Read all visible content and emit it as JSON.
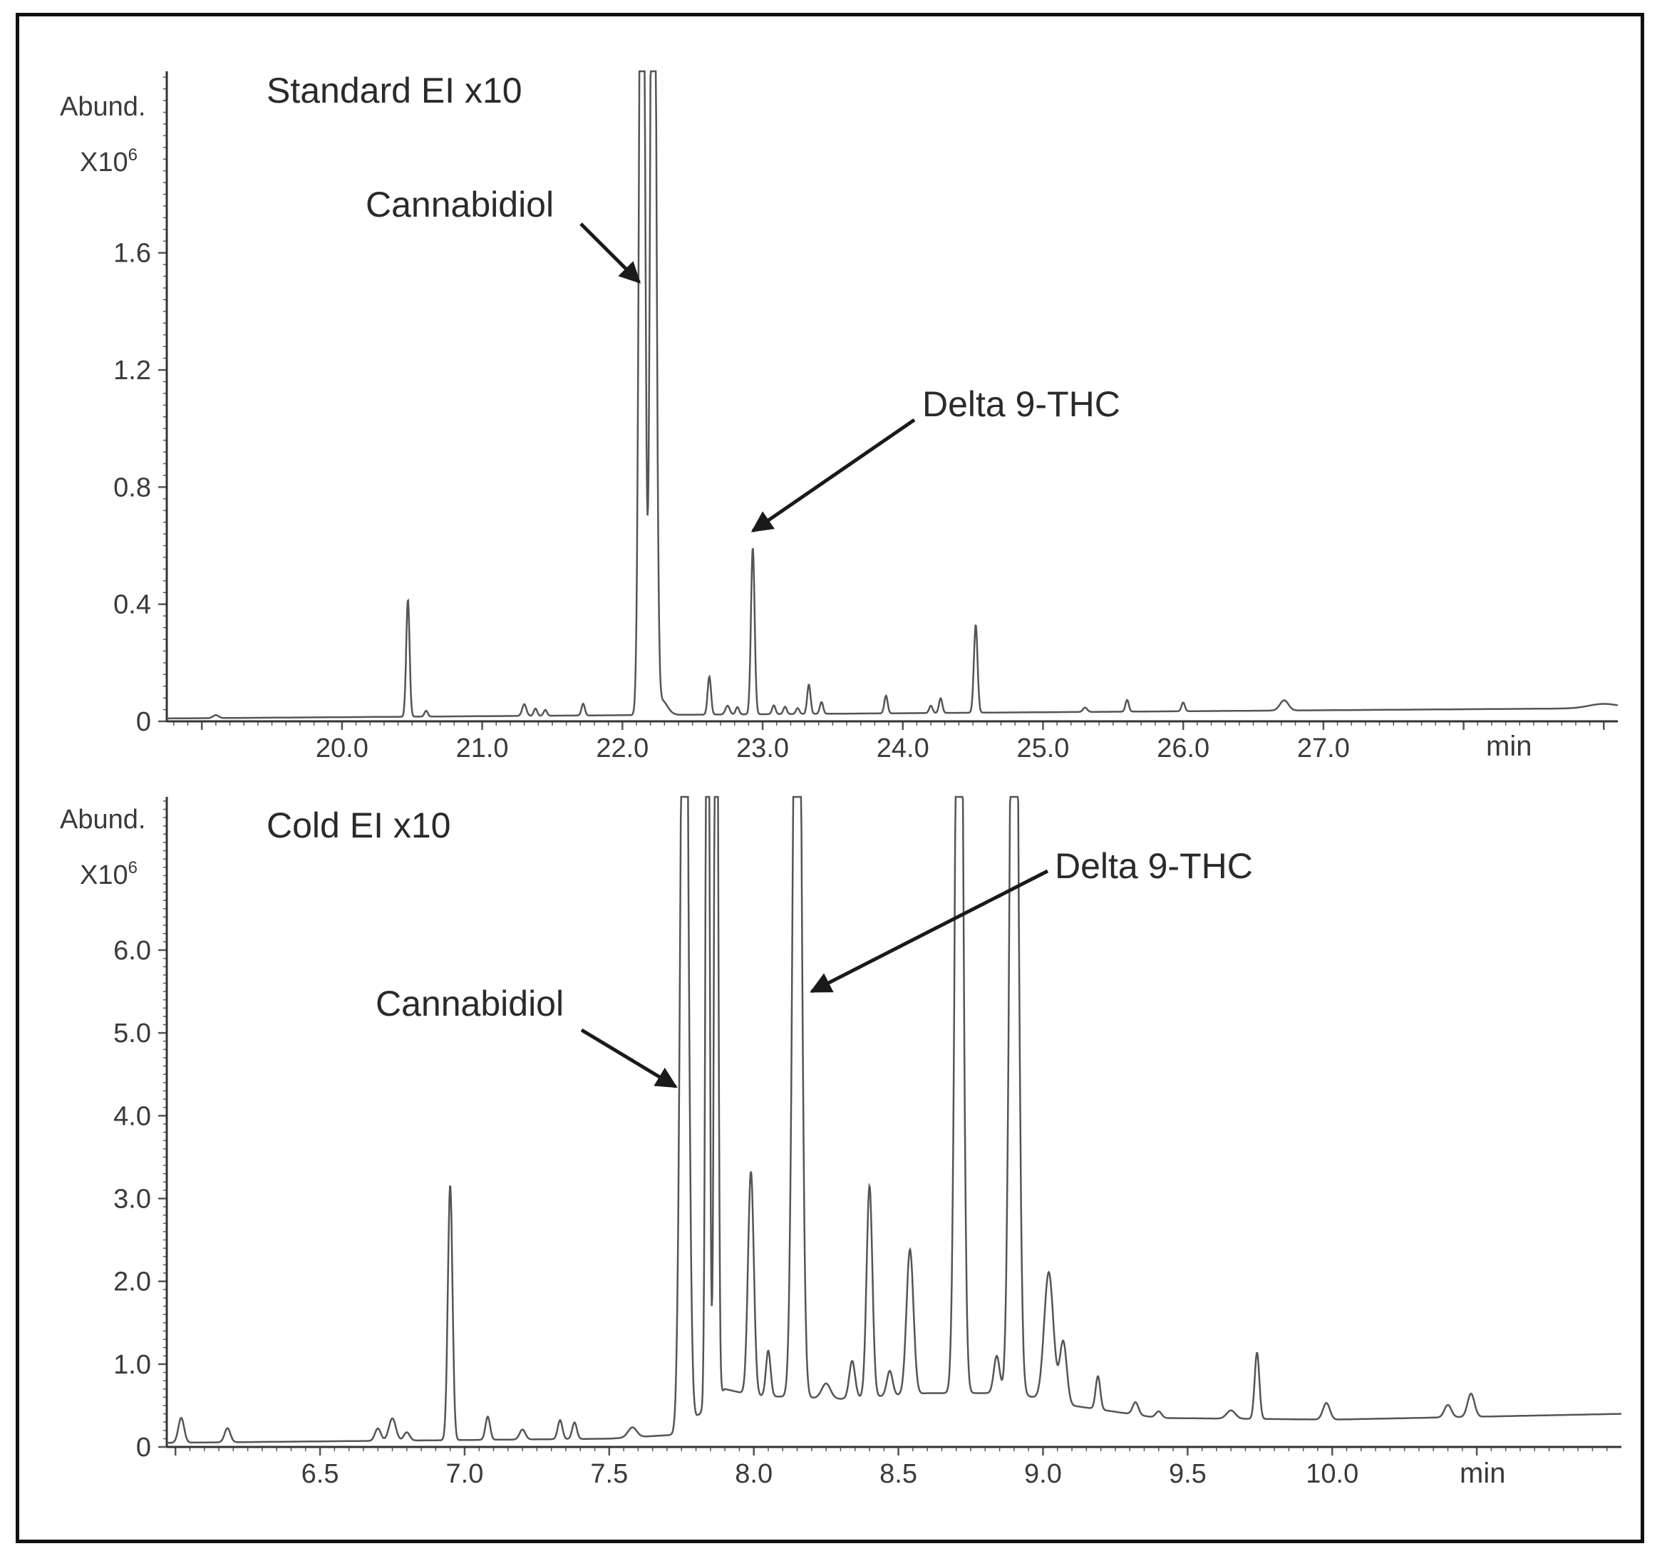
{
  "colors": {
    "trace": "#555555",
    "axis": "#333333",
    "text": "#3a3a3a",
    "arrow": "#1a1a1a",
    "frame": "#111111"
  },
  "chart_data": [
    {
      "type": "line",
      "title": "Standard EI x10",
      "y_unit_label": "Abund.",
      "y_scale_label": "X10",
      "y_scale_exponent": "6",
      "x_unit_label": "min",
      "xlim": [
        18.75,
        29.1
      ],
      "ylim": [
        0,
        2.22
      ],
      "x_ticks": [
        20.0,
        21.0,
        22.0,
        23.0,
        24.0,
        25.0,
        26.0,
        27.0
      ],
      "x_tick_labels": [
        "20.0",
        "21.0",
        "22.0",
        "23.0",
        "24.0",
        "25.0",
        "26.0",
        "27.0"
      ],
      "y_ticks": [
        0,
        0.4,
        0.8,
        1.2,
        1.6
      ],
      "y_tick_labels": [
        "0",
        "0.4",
        "0.8",
        "1.2",
        "1.6"
      ],
      "baseline": {
        "start": 0.01,
        "end": 0.045,
        "hump_x": 29.0,
        "hump_y": 0.015
      },
      "peaks": [
        {
          "x": 19.1,
          "y": 0.01,
          "w": 0.02
        },
        {
          "x": 20.47,
          "y": 0.4,
          "w": 0.012
        },
        {
          "x": 20.6,
          "y": 0.02,
          "w": 0.012
        },
        {
          "x": 21.3,
          "y": 0.04,
          "w": 0.015
        },
        {
          "x": 21.38,
          "y": 0.025,
          "w": 0.012
        },
        {
          "x": 21.45,
          "y": 0.02,
          "w": 0.012
        },
        {
          "x": 21.72,
          "y": 0.04,
          "w": 0.012
        },
        {
          "x": 22.14,
          "y": 4.0,
          "w": 0.018
        },
        {
          "x": 22.22,
          "y": 4.0,
          "w": 0.018
        },
        {
          "x": 22.28,
          "y": 0.05,
          "w": 0.04
        },
        {
          "x": 22.62,
          "y": 0.13,
          "w": 0.012
        },
        {
          "x": 22.75,
          "y": 0.03,
          "w": 0.015
        },
        {
          "x": 22.82,
          "y": 0.025,
          "w": 0.012
        },
        {
          "x": 22.93,
          "y": 0.57,
          "w": 0.013
        },
        {
          "x": 23.08,
          "y": 0.03,
          "w": 0.012
        },
        {
          "x": 23.16,
          "y": 0.025,
          "w": 0.012
        },
        {
          "x": 23.25,
          "y": 0.02,
          "w": 0.012
        },
        {
          "x": 23.33,
          "y": 0.1,
          "w": 0.012
        },
        {
          "x": 23.42,
          "y": 0.04,
          "w": 0.012
        },
        {
          "x": 23.88,
          "y": 0.06,
          "w": 0.012
        },
        {
          "x": 24.2,
          "y": 0.025,
          "w": 0.012
        },
        {
          "x": 24.27,
          "y": 0.05,
          "w": 0.012
        },
        {
          "x": 24.52,
          "y": 0.3,
          "w": 0.013
        },
        {
          "x": 25.3,
          "y": 0.015,
          "w": 0.015
        },
        {
          "x": 25.6,
          "y": 0.04,
          "w": 0.012
        },
        {
          "x": 26.0,
          "y": 0.03,
          "w": 0.012
        },
        {
          "x": 26.72,
          "y": 0.035,
          "w": 0.03
        }
      ],
      "annotations": [
        {
          "text": "Cannabidiol",
          "target_x": 22.12,
          "target_y": 1.5
        },
        {
          "text": "Delta 9-THC",
          "target_x": 22.93,
          "target_y": 0.65
        }
      ]
    },
    {
      "type": "line",
      "title": "Cold EI x10",
      "y_unit_label": "Abund.",
      "y_scale_label": "X10",
      "y_scale_exponent": "6",
      "x_unit_label": "min",
      "xlim": [
        5.97,
        11.0
      ],
      "ylim": [
        0,
        7.85
      ],
      "x_ticks": [
        6.5,
        7.0,
        7.5,
        8.0,
        8.5,
        9.0,
        9.5,
        10.0
      ],
      "x_tick_labels": [
        "6.5",
        "7.0",
        "7.5",
        "8.0",
        "8.5",
        "9.0",
        "9.5",
        "10.0"
      ],
      "y_ticks": [
        0,
        1.0,
        2.0,
        3.0,
        4.0,
        5.0,
        6.0
      ],
      "y_tick_labels": [
        "0",
        "1.0",
        "2.0",
        "3.0",
        "4.0",
        "5.0",
        "6.0"
      ],
      "baseline": [
        {
          "x": 5.97,
          "y": 0.05
        },
        {
          "x": 7.5,
          "y": 0.1
        },
        {
          "x": 7.74,
          "y": 0.15
        },
        {
          "x": 7.9,
          "y": 0.7
        },
        {
          "x": 8.0,
          "y": 0.62
        },
        {
          "x": 8.3,
          "y": 0.58
        },
        {
          "x": 8.6,
          "y": 0.65
        },
        {
          "x": 8.9,
          "y": 0.65
        },
        {
          "x": 9.1,
          "y": 0.5
        },
        {
          "x": 9.4,
          "y": 0.35
        },
        {
          "x": 10.0,
          "y": 0.33
        },
        {
          "x": 11.0,
          "y": 0.4
        }
      ],
      "peaks": [
        {
          "x": 6.02,
          "y": 0.3,
          "w": 0.01
        },
        {
          "x": 6.18,
          "y": 0.17,
          "w": 0.01
        },
        {
          "x": 6.7,
          "y": 0.15,
          "w": 0.01
        },
        {
          "x": 6.75,
          "y": 0.27,
          "w": 0.012
        },
        {
          "x": 6.8,
          "y": 0.1,
          "w": 0.01
        },
        {
          "x": 6.95,
          "y": 3.08,
          "w": 0.008
        },
        {
          "x": 7.08,
          "y": 0.28,
          "w": 0.008
        },
        {
          "x": 7.2,
          "y": 0.12,
          "w": 0.01
        },
        {
          "x": 7.33,
          "y": 0.23,
          "w": 0.008
        },
        {
          "x": 7.38,
          "y": 0.2,
          "w": 0.008
        },
        {
          "x": 7.58,
          "y": 0.12,
          "w": 0.015
        },
        {
          "x": 7.76,
          "y": 13.0,
          "w": 0.012
        },
        {
          "x": 7.84,
          "y": 13.0,
          "w": 0.006
        },
        {
          "x": 7.87,
          "y": 13.0,
          "w": 0.006
        },
        {
          "x": 7.99,
          "y": 2.7,
          "w": 0.01
        },
        {
          "x": 8.05,
          "y": 0.55,
          "w": 0.008
        },
        {
          "x": 8.15,
          "y": 13.0,
          "w": 0.013
        },
        {
          "x": 8.25,
          "y": 0.18,
          "w": 0.015
        },
        {
          "x": 8.34,
          "y": 0.45,
          "w": 0.01
        },
        {
          "x": 8.4,
          "y": 2.55,
          "w": 0.01
        },
        {
          "x": 8.47,
          "y": 0.3,
          "w": 0.01
        },
        {
          "x": 8.54,
          "y": 1.75,
          "w": 0.012
        },
        {
          "x": 8.71,
          "y": 13.0,
          "w": 0.012
        },
        {
          "x": 8.84,
          "y": 0.45,
          "w": 0.01
        },
        {
          "x": 8.9,
          "y": 13.0,
          "w": 0.013
        },
        {
          "x": 9.02,
          "y": 1.55,
          "w": 0.016
        },
        {
          "x": 9.07,
          "y": 0.75,
          "w": 0.012
        },
        {
          "x": 9.19,
          "y": 0.4,
          "w": 0.008
        },
        {
          "x": 9.32,
          "y": 0.15,
          "w": 0.01
        },
        {
          "x": 9.4,
          "y": 0.08,
          "w": 0.01
        },
        {
          "x": 9.65,
          "y": 0.1,
          "w": 0.015
        },
        {
          "x": 9.74,
          "y": 0.8,
          "w": 0.008
        },
        {
          "x": 9.98,
          "y": 0.2,
          "w": 0.012
        },
        {
          "x": 10.4,
          "y": 0.15,
          "w": 0.012
        },
        {
          "x": 10.48,
          "y": 0.28,
          "w": 0.012
        }
      ],
      "annotations": [
        {
          "text": "Delta 9-THC",
          "target_x": 8.2,
          "target_y": 5.5
        },
        {
          "text": "Cannabidiol",
          "target_x": 7.73,
          "target_y": 4.35
        }
      ]
    }
  ]
}
